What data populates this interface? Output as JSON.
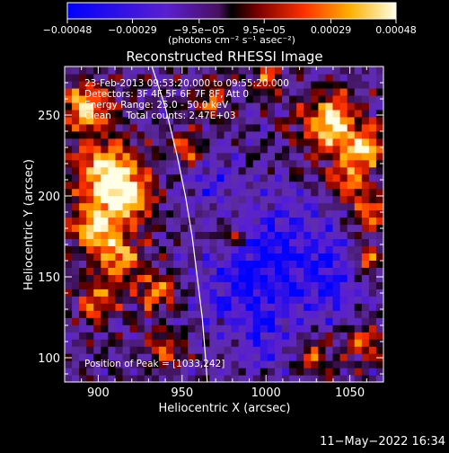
{
  "chart_data": {
    "type": "heatmap",
    "title": "Reconstructed RHESSI Image",
    "xlabel": "Heliocentric X (arcsec)",
    "ylabel": "Heliocentric Y (arcsec)",
    "xlim": [
      880,
      1070
    ],
    "ylim": [
      85,
      280
    ],
    "x_ticks": [
      900,
      950,
      1000,
      1050
    ],
    "y_ticks": [
      100,
      150,
      200,
      250
    ],
    "colorbar": {
      "range": [
        -0.00048,
        0.00048
      ],
      "tick_values": [
        -0.00048,
        -0.00029,
        -9.5e-05,
        9.5e-05,
        0.00029,
        0.00048
      ],
      "tick_labels": [
        "−0.00048",
        "−0.00029",
        "−9.5e−05",
        "9.5e−05",
        "0.00029",
        "0.00048"
      ],
      "unit_label": "(photons cm⁻² s⁻¹ asec⁻²)"
    },
    "annotations": [
      "23-Feb-2013 09:53:20.000 to 09:55:20.000",
      "Detectors: 3F 4F 5F 6F 7F 8F, Att 0",
      "Energy Range: 25.0 - 50.0 keV",
      "Clean     Total counts: 2.47E+03"
    ],
    "peak_label": "Position of Peak = [1033,242]",
    "limb": [
      [
        932,
        280
      ],
      [
        940,
        255
      ],
      [
        947,
        225
      ],
      [
        952,
        200
      ],
      [
        956,
        175
      ],
      [
        959,
        150
      ],
      [
        962,
        125
      ],
      [
        964,
        100
      ],
      [
        965,
        85
      ]
    ],
    "hot_regions": [
      {
        "x": 893,
        "y": 255,
        "r": 14,
        "a": 0.9
      },
      {
        "x": 905,
        "y": 215,
        "r": 18,
        "a": 1.0
      },
      {
        "x": 918,
        "y": 200,
        "r": 14,
        "a": 0.8
      },
      {
        "x": 900,
        "y": 180,
        "r": 16,
        "a": 0.9
      },
      {
        "x": 915,
        "y": 160,
        "r": 12,
        "a": 0.7
      },
      {
        "x": 935,
        "y": 140,
        "r": 12,
        "a": 0.6
      },
      {
        "x": 900,
        "y": 135,
        "r": 12,
        "a": 0.6
      },
      {
        "x": 955,
        "y": 230,
        "r": 10,
        "a": 0.6
      },
      {
        "x": 968,
        "y": 260,
        "r": 10,
        "a": 0.5
      },
      {
        "x": 1000,
        "y": 275,
        "r": 10,
        "a": 0.5
      },
      {
        "x": 1038,
        "y": 245,
        "r": 16,
        "a": 1.0
      },
      {
        "x": 1060,
        "y": 230,
        "r": 12,
        "a": 0.8
      },
      {
        "x": 1048,
        "y": 210,
        "r": 12,
        "a": 0.7
      },
      {
        "x": 1062,
        "y": 190,
        "r": 10,
        "a": 0.7
      },
      {
        "x": 1060,
        "y": 160,
        "r": 10,
        "a": 0.6
      },
      {
        "x": 1030,
        "y": 100,
        "r": 10,
        "a": 0.5
      },
      {
        "x": 1060,
        "y": 110,
        "r": 10,
        "a": 0.6
      },
      {
        "x": 940,
        "y": 105,
        "r": 10,
        "a": 0.5
      },
      {
        "x": 980,
        "y": 175,
        "r": 8,
        "a": 0.5
      }
    ],
    "cold_regions": [
      {
        "x": 1010,
        "y": 165,
        "r": 35,
        "a": 1.0
      },
      {
        "x": 985,
        "y": 140,
        "r": 25,
        "a": 0.8
      },
      {
        "x": 1040,
        "y": 145,
        "r": 20,
        "a": 0.7
      },
      {
        "x": 1000,
        "y": 110,
        "r": 18,
        "a": 0.6
      },
      {
        "x": 965,
        "y": 210,
        "r": 18,
        "a": 0.6
      }
    ]
  },
  "footer": {
    "timestamp": "11−May−2022 16:34"
  }
}
